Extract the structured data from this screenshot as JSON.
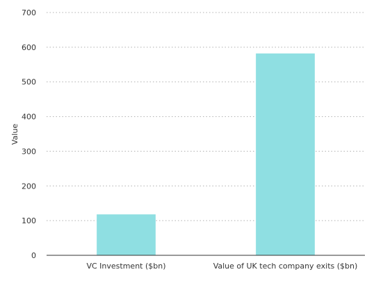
{
  "chart_data": {
    "type": "bar",
    "title": "",
    "xlabel": "",
    "ylabel": "Value",
    "categories": [
      "VC Investment ($bn)",
      "Value of UK tech company exits ($bn)"
    ],
    "values": [
      118,
      582
    ],
    "ylim": [
      0,
      700
    ],
    "yticks": [
      0,
      100,
      200,
      300,
      400,
      500,
      600,
      700
    ],
    "grid": true,
    "bar_color": "#8fdfe2",
    "grid_color": "#b0b0b0",
    "axis_color": "#333333"
  }
}
